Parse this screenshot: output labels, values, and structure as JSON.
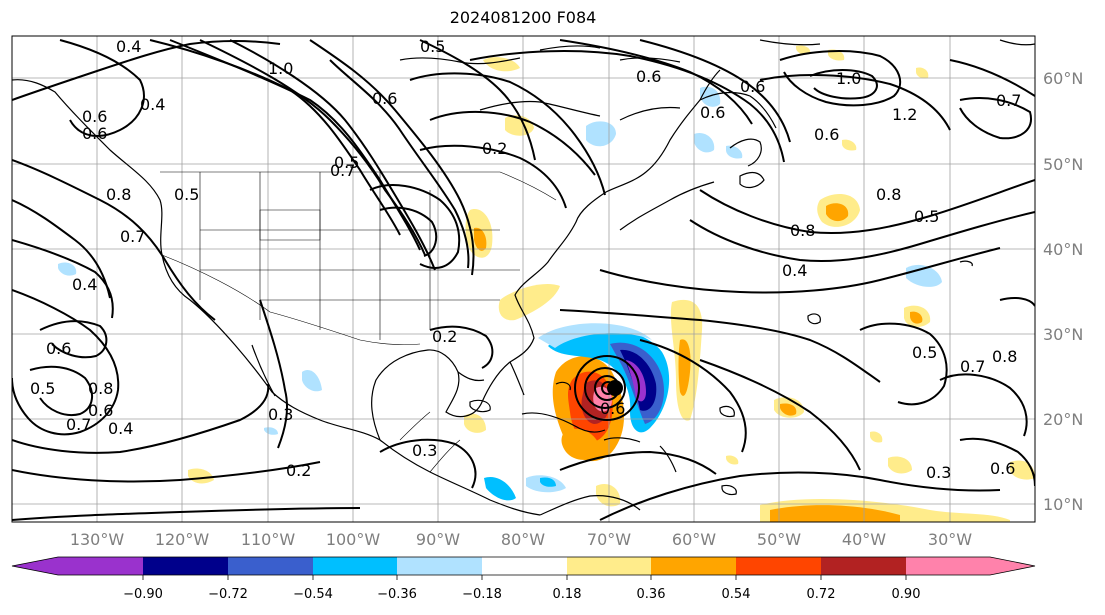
{
  "title": "2024081200 F084",
  "lon_labels": [
    "130°W",
    "120°W",
    "110°W",
    "100°W",
    "90°W",
    "80°W",
    "70°W",
    "60°W",
    "50°W",
    "40°W",
    "30°W"
  ],
  "lat_labels": [
    "60°N",
    "50°N",
    "40°N",
    "30°N",
    "20°N",
    "10°N"
  ],
  "colorbar": {
    "ticks": [
      "−0.90",
      "−0.72",
      "−0.54",
      "−0.36",
      "−0.18",
      "0.18",
      "0.36",
      "0.54",
      "0.72",
      "0.90"
    ],
    "colors": [
      "#9a32cd",
      "#00008b",
      "#3a5fcd",
      "#00bfff",
      "#b0e2ff",
      "#ffffff",
      "#ffec8b",
      "#ffa500",
      "#ff4500",
      "#b22222",
      "#ff82ab"
    ]
  },
  "contour_labels": [
    {
      "text": "0.4"
    },
    {
      "text": "0.6"
    },
    {
      "text": "1.0"
    },
    {
      "text": "0.8"
    },
    {
      "text": "0.5"
    },
    {
      "text": "0.7"
    },
    {
      "text": "0.4"
    },
    {
      "text": "0.6"
    },
    {
      "text": "0.6"
    },
    {
      "text": "0.4"
    },
    {
      "text": "0.8"
    },
    {
      "text": "0.5"
    },
    {
      "text": "0.7"
    },
    {
      "text": "0.4"
    },
    {
      "text": "0.6"
    },
    {
      "text": "0.5"
    },
    {
      "text": "0.6"
    },
    {
      "text": "0.7"
    },
    {
      "text": "0.5"
    },
    {
      "text": "0.2"
    },
    {
      "text": "0.2"
    },
    {
      "text": "0.2"
    },
    {
      "text": "0.6"
    },
    {
      "text": "0.6"
    },
    {
      "text": "0.6"
    },
    {
      "text": "1.0"
    },
    {
      "text": "1.2"
    },
    {
      "text": "0.7"
    },
    {
      "text": "0.6"
    },
    {
      "text": "0.8"
    },
    {
      "text": "0.5"
    },
    {
      "text": "0.8"
    },
    {
      "text": "0.4"
    },
    {
      "text": "0.5"
    },
    {
      "text": "0.7"
    },
    {
      "text": "0.8"
    },
    {
      "text": "0.6"
    },
    {
      "text": "0.3"
    },
    {
      "text": "0.6"
    },
    {
      "text": "0.3"
    },
    {
      "text": "0.3"
    }
  ]
}
